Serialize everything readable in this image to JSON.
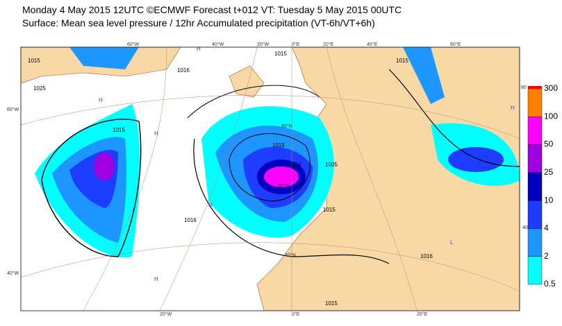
{
  "header": {
    "line1": "Monday 4 May 2015 12UTC ©ECMWF Forecast t+012 VT: Tuesday 5 May 2015 00UTC",
    "line2": "Surface: Mean sea level pressure / 12hr Accumulated precipitation (VT-6h/VT+6h)"
  },
  "colorbar": {
    "levels": [
      0.5,
      2,
      4,
      10,
      25,
      50,
      100,
      300
    ],
    "colors": [
      "#00ffff",
      "#1e96ff",
      "#1e3cff",
      "#0000c0",
      "#a000e0",
      "#ff00ff",
      "#ff8000"
    ],
    "top_color": "#ff0000"
  },
  "map": {
    "graticule_labels": [
      "60°W",
      "40°W",
      "20°W",
      "0°E",
      "20°E",
      "40°E",
      "60°E",
      "60°W",
      "40°W",
      "20°W",
      "0°E",
      "20°E",
      "60°N",
      "40°N",
      "80°N",
      "80",
      "40"
    ],
    "isobar_labels": [
      "1015",
      "1016",
      "1025",
      "1015",
      "1015",
      "1015",
      "1016",
      "1004",
      "1005",
      "1015",
      "1016",
      "1015",
      "1015"
    ],
    "centers": [
      "H",
      "H",
      "H",
      "H",
      "H",
      "L",
      "L",
      "H"
    ]
  }
}
